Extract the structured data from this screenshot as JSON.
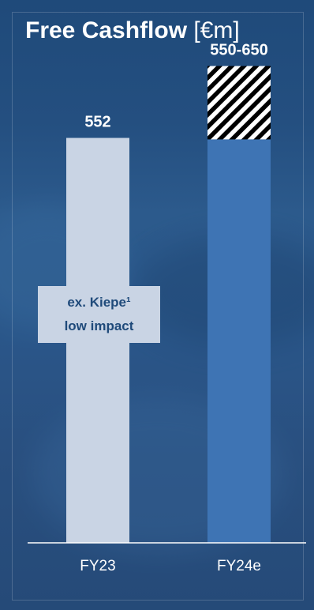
{
  "title": {
    "bold": "Free Cashflow",
    "unit": "[€m]"
  },
  "callout": {
    "line1": "ex. Kiepe¹",
    "line2": "low impact"
  },
  "colors": {
    "background": "#244f80",
    "fy23_bar": "#c9d4e4",
    "fy24_bar": "#3e74b4",
    "range_hatch": "#000000",
    "text": "#ffffff"
  },
  "chart_data": {
    "type": "bar",
    "categories": [
      "FY23",
      "FY24e"
    ],
    "values": [
      552,
      550
    ],
    "range": {
      "category": "FY24e",
      "low": 550,
      "high": 650
    },
    "data_labels": [
      "552",
      "550-650"
    ],
    "title": "Free Cashflow [€m]",
    "xlabel": "",
    "ylabel": "",
    "ylim": [
      0,
      740
    ],
    "grid": false,
    "legend": "none"
  }
}
